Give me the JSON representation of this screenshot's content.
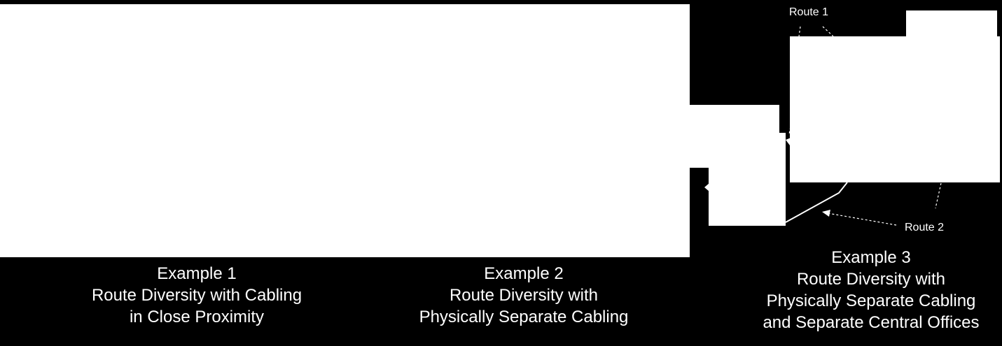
{
  "examples": [
    {
      "heading": "Example 1",
      "line1": "Route Diversity with Cabling",
      "line2": "in Close Proximity"
    },
    {
      "heading": "Example 2",
      "line1": "Route Diversity with",
      "line2": "Physically Separate Cabling"
    },
    {
      "heading": "Example 3",
      "line1": "Route Diversity with",
      "line2": "Physically Separate Cabling",
      "line3": "and Separate Central Offices"
    }
  ],
  "route_labels": {
    "route1": "Route 1",
    "route2": "Route 2"
  },
  "colors": {
    "background": "#000000",
    "panel": "#ffffff",
    "text": "#ffffff"
  }
}
